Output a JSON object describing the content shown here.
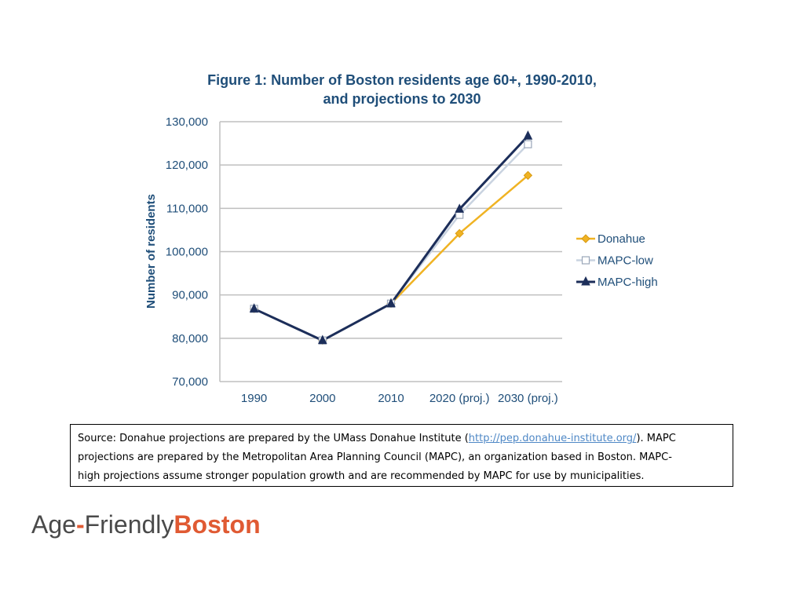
{
  "chart_data": {
    "type": "line",
    "title_lines": [
      "Figure 1: Number of Boston residents age 60+, 1990-2010,",
      "and projections to 2030"
    ],
    "categories": [
      "1990",
      "2000",
      "2010",
      "2020 (proj.)",
      "2030 (proj.)"
    ],
    "ylabel": "Number of residents",
    "xlabel": "",
    "ylim": [
      70000,
      130000
    ],
    "yticks": [
      70000,
      80000,
      90000,
      100000,
      110000,
      120000,
      130000
    ],
    "ytick_labels": [
      "70,000",
      "80,000",
      "90,000",
      "100,000",
      "110,000",
      "120,000",
      "130,000"
    ],
    "grid": true,
    "legend_position": "right",
    "series": [
      {
        "name": "Donahue",
        "values": [
          86800,
          79500,
          88000,
          104200,
          117600
        ],
        "color": "#f0b323",
        "marker": "diamond"
      },
      {
        "name": "MAPC-low",
        "values": [
          86800,
          79500,
          88000,
          108500,
          124800
        ],
        "color": "#c9d3e0",
        "marker": "square"
      },
      {
        "name": "MAPC-high",
        "values": [
          86800,
          79500,
          88000,
          109800,
          126700
        ],
        "color": "#1c2e5a",
        "marker": "triangle"
      }
    ]
  },
  "source": {
    "prefix": "Source: Donahue projections are prepared by the UMass Donahue Institute (",
    "link": "http://pep.donahue-institute.org/",
    "suffix_line1": "). MAPC",
    "line2": "projections are prepared by the Metropolitan Area Planning Council (MAPC), an organization based in Boston. MAPC-",
    "line3": "high projections assume stronger population growth and are recommended by MAPC for use by municipalities."
  },
  "logo": {
    "age": "Age",
    "hyphen": "-",
    "friendly": "Friendly",
    "city": "Boston"
  }
}
